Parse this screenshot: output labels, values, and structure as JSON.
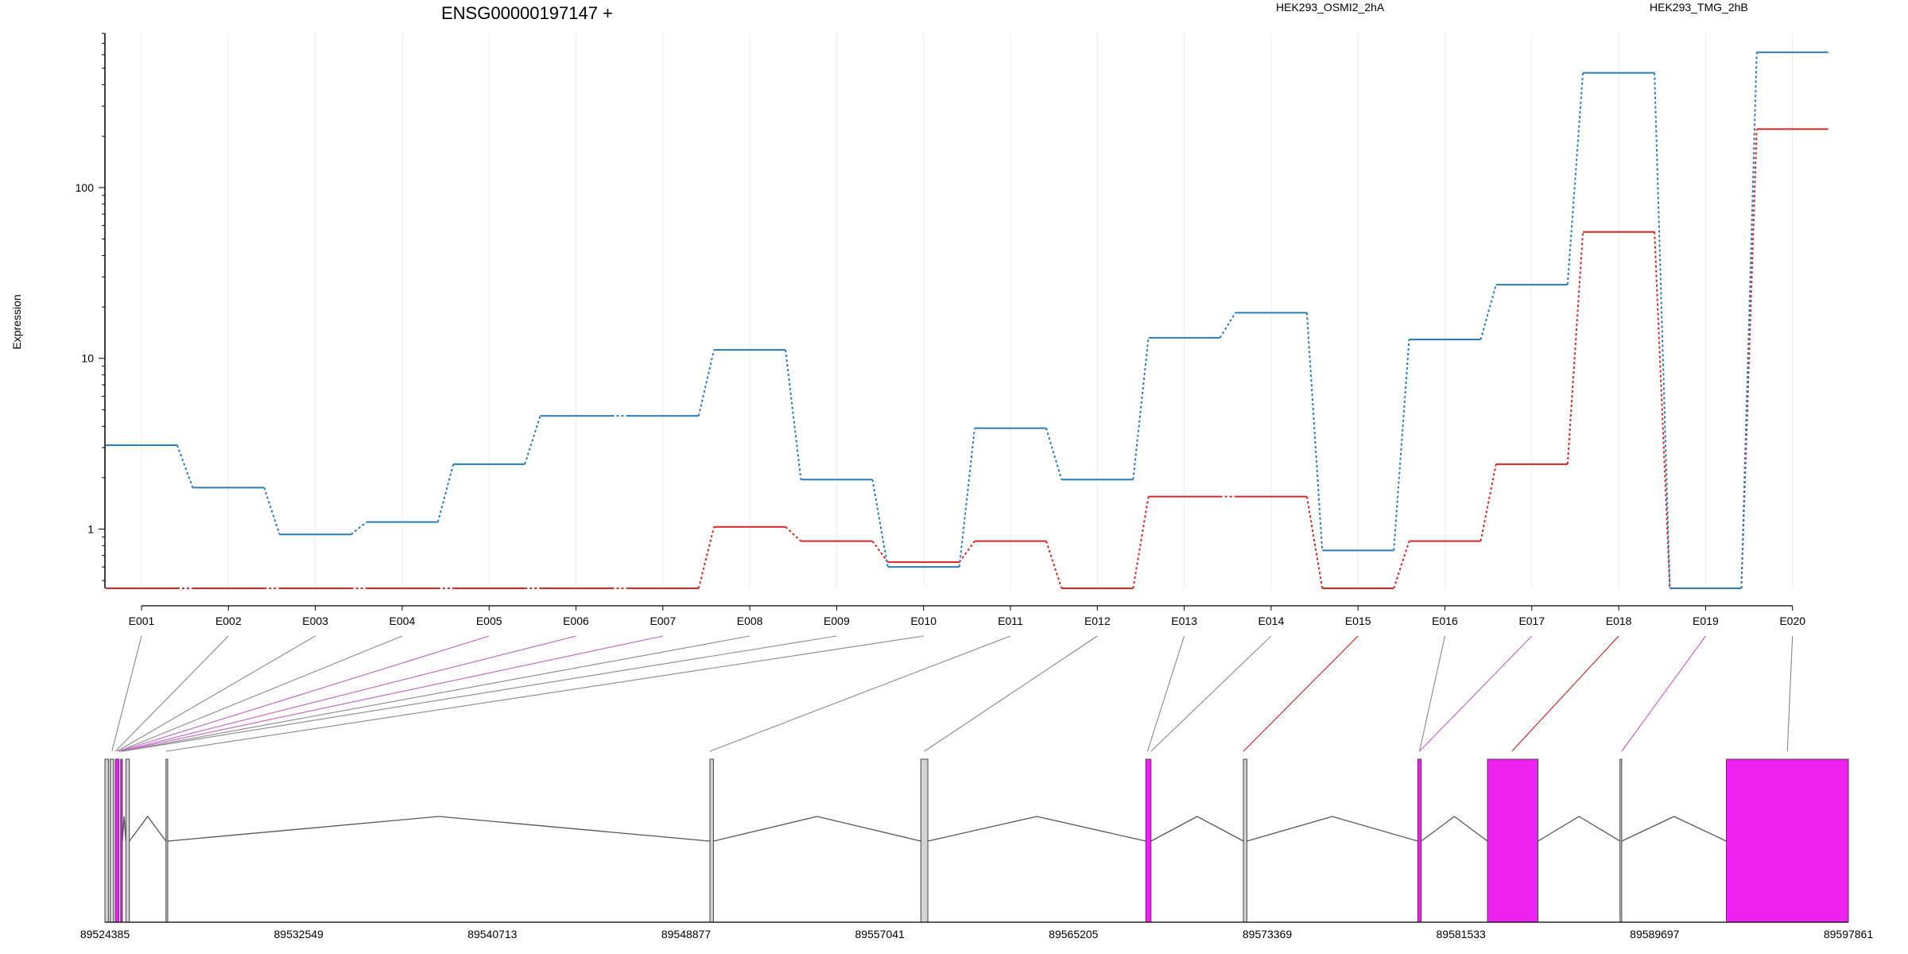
{
  "chart_data": {
    "type": "line",
    "title": "ENSG00000197147 +",
    "ylabel": "Expression",
    "yscale": "log",
    "ylim": [
      0.45,
      800
    ],
    "yticks": [
      1,
      10,
      100
    ],
    "ytick_labels": [
      "1",
      "10",
      "100"
    ],
    "categories": [
      "E001",
      "E002",
      "E003",
      "E004",
      "E005",
      "E006",
      "E007",
      "E008",
      "E009",
      "E010",
      "E011",
      "E012",
      "E013",
      "E014",
      "E015",
      "E016",
      "E017",
      "E018",
      "E019",
      "E020"
    ],
    "series": [
      {
        "name": "HEK293_OSMI2_2hA",
        "color": "#d62728",
        "values": [
          0.45,
          0.45,
          0.45,
          0.45,
          0.45,
          0.45,
          0.45,
          1.03,
          0.85,
          0.64,
          0.85,
          0.45,
          1.55,
          1.55,
          0.45,
          0.85,
          2.4,
          55,
          0.45,
          220
        ]
      },
      {
        "name": "HEK293_TMG_2hB",
        "color": "#2c7bb6",
        "values": [
          3.1,
          1.75,
          0.93,
          1.1,
          2.4,
          4.6,
          4.6,
          11.2,
          1.95,
          0.6,
          3.9,
          1.95,
          13.2,
          18.5,
          0.75,
          12.9,
          27,
          470,
          0.45,
          620
        ]
      }
    ],
    "genomic_axis": {
      "ticks": [
        "89524385",
        "89532549",
        "89540713",
        "89548877",
        "89557041",
        "89565205",
        "89573369",
        "89581533",
        "89589697",
        "89597861"
      ]
    },
    "exon_colors": {
      "significant": "#ee22ee",
      "normal": "#d3d3d3",
      "highlight": "#ee22ee"
    }
  }
}
